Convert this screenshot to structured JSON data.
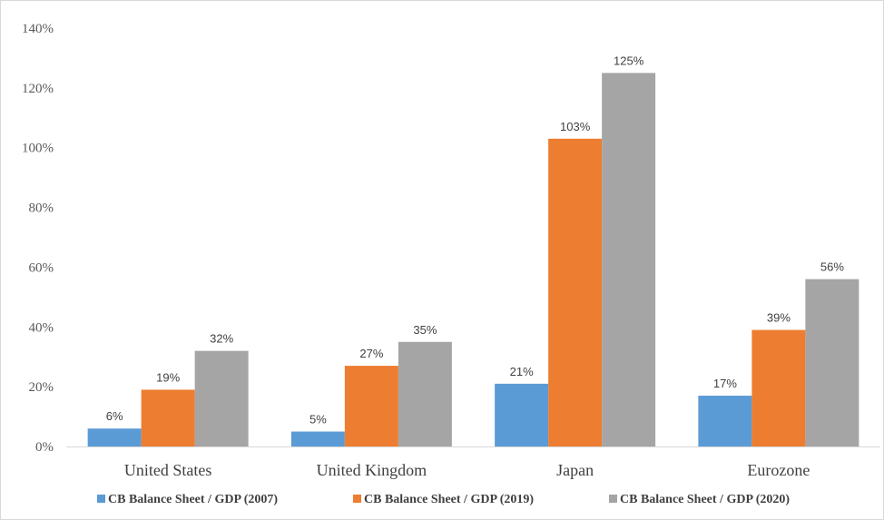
{
  "chart_data": {
    "type": "bar",
    "title": "",
    "xlabel": "",
    "ylabel": "",
    "categories": [
      "United States",
      "United Kingdom",
      "Japan",
      "Eurozone"
    ],
    "series": [
      {
        "name": "CB Balance Sheet / GDP (2007)",
        "color": "#5b9bd5",
        "values": [
          6,
          5,
          21,
          17
        ],
        "labels": [
          "6%",
          "5%",
          "21%",
          "17%"
        ]
      },
      {
        "name": "CB Balance Sheet / GDP (2019)",
        "color": "#ed7d31",
        "values": [
          19,
          27,
          103,
          39
        ],
        "labels": [
          "19%",
          "27%",
          "103%",
          "39%"
        ]
      },
      {
        "name": "CB Balance Sheet / GDP (2020)",
        "color": "#a5a5a5",
        "values": [
          32,
          35,
          125,
          56
        ],
        "labels": [
          "32%",
          "35%",
          "125%",
          "56%"
        ]
      }
    ],
    "ylim": [
      0,
      140
    ],
    "yticks": [
      0,
      20,
      40,
      60,
      80,
      100,
      120,
      140
    ],
    "ytick_labels": [
      "0%",
      "20%",
      "40%",
      "60%",
      "80%",
      "100%",
      "120%",
      "140%"
    ],
    "grid": false,
    "legend_position": "bottom"
  }
}
